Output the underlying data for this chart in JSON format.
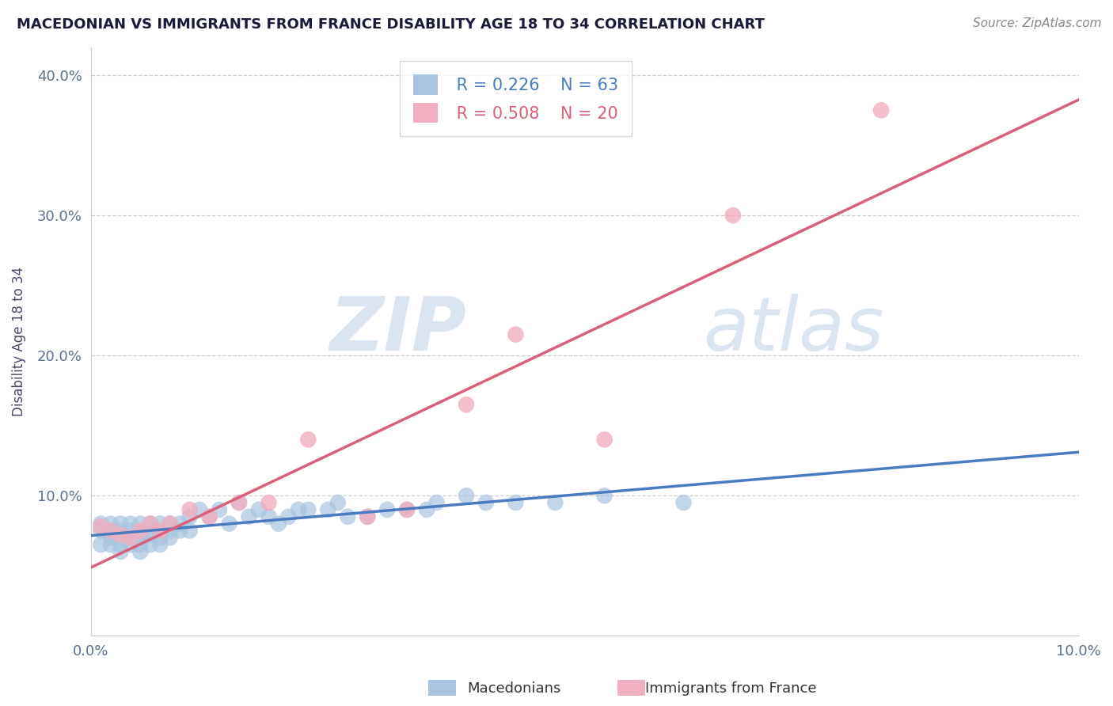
{
  "title": "MACEDONIAN VS IMMIGRANTS FROM FRANCE DISABILITY AGE 18 TO 34 CORRELATION CHART",
  "source": "Source: ZipAtlas.com",
  "ylabel": "Disability Age 18 to 34",
  "xlim": [
    0.0,
    0.1
  ],
  "ylim": [
    0.0,
    0.42
  ],
  "xtick_positions": [
    0.0,
    0.02,
    0.04,
    0.06,
    0.08,
    0.1
  ],
  "xtick_labels": [
    "0.0%",
    "",
    "",
    "",
    "",
    "10.0%"
  ],
  "ytick_positions": [
    0.0,
    0.1,
    0.2,
    0.3,
    0.4
  ],
  "ytick_labels": [
    "",
    "10.0%",
    "20.0%",
    "30.0%",
    "40.0%"
  ],
  "legend_r1": "R = 0.226",
  "legend_n1": "N = 63",
  "legend_r2": "R = 0.508",
  "legend_n2": "N = 20",
  "macedonian_color": "#a8c4e0",
  "france_color": "#f0afc0",
  "trend_mac_color": "#4a7bbf",
  "trend_fra_color": "#d9607a",
  "watermark_zip": "ZIP",
  "watermark_atlas": "atlas",
  "macedonian_x": [
    0.001,
    0.001,
    0.001,
    0.002,
    0.002,
    0.002,
    0.002,
    0.002,
    0.003,
    0.003,
    0.003,
    0.003,
    0.003,
    0.004,
    0.004,
    0.004,
    0.004,
    0.005,
    0.005,
    0.005,
    0.005,
    0.005,
    0.006,
    0.006,
    0.006,
    0.006,
    0.007,
    0.007,
    0.007,
    0.007,
    0.008,
    0.008,
    0.008,
    0.009,
    0.009,
    0.01,
    0.01,
    0.011,
    0.012,
    0.013,
    0.014,
    0.015,
    0.016,
    0.017,
    0.018,
    0.019,
    0.02,
    0.021,
    0.022,
    0.024,
    0.025,
    0.026,
    0.028,
    0.03,
    0.032,
    0.034,
    0.035,
    0.038,
    0.04,
    0.043,
    0.047,
    0.052,
    0.06
  ],
  "macedonian_y": [
    0.08,
    0.075,
    0.065,
    0.072,
    0.08,
    0.075,
    0.07,
    0.065,
    0.075,
    0.08,
    0.07,
    0.065,
    0.06,
    0.075,
    0.08,
    0.07,
    0.065,
    0.075,
    0.08,
    0.07,
    0.065,
    0.06,
    0.075,
    0.08,
    0.072,
    0.065,
    0.08,
    0.075,
    0.07,
    0.065,
    0.08,
    0.075,
    0.07,
    0.08,
    0.075,
    0.085,
    0.075,
    0.09,
    0.085,
    0.09,
    0.08,
    0.095,
    0.085,
    0.09,
    0.085,
    0.08,
    0.085,
    0.09,
    0.09,
    0.09,
    0.095,
    0.085,
    0.085,
    0.09,
    0.09,
    0.09,
    0.095,
    0.1,
    0.095,
    0.095,
    0.095,
    0.1,
    0.095
  ],
  "france_x": [
    0.001,
    0.002,
    0.003,
    0.004,
    0.005,
    0.006,
    0.007,
    0.008,
    0.01,
    0.012,
    0.015,
    0.018,
    0.022,
    0.028,
    0.032,
    0.038,
    0.043,
    0.052,
    0.065,
    0.08
  ],
  "france_y": [
    0.078,
    0.075,
    0.072,
    0.07,
    0.075,
    0.08,
    0.075,
    0.08,
    0.09,
    0.085,
    0.095,
    0.095,
    0.14,
    0.085,
    0.09,
    0.165,
    0.215,
    0.14,
    0.3,
    0.375
  ],
  "background_color": "#ffffff",
  "grid_color": "#c8c8c8"
}
